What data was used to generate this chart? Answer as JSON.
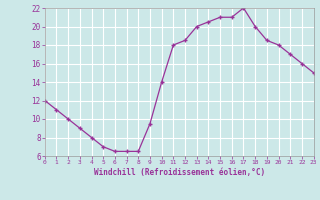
{
  "x": [
    0,
    1,
    2,
    3,
    4,
    5,
    6,
    7,
    8,
    9,
    10,
    11,
    12,
    13,
    14,
    15,
    16,
    17,
    18,
    19,
    20,
    21,
    22,
    23
  ],
  "y": [
    12,
    11,
    10,
    9,
    8,
    7,
    6.5,
    6.5,
    6.5,
    9.5,
    14,
    18,
    18.5,
    20,
    20.5,
    21,
    21,
    22,
    20,
    18.5,
    18,
    17,
    16,
    15
  ],
  "line_color": "#993399",
  "marker": "+",
  "bg_color": "#cce8e8",
  "grid_color": "#b0d8d8",
  "xlabel": "Windchill (Refroidissement éolien,°C)",
  "xlabel_color": "#993399",
  "tick_color": "#993399",
  "spine_color": "#999999",
  "ylim": [
    6,
    22
  ],
  "xlim": [
    0,
    23
  ],
  "yticks": [
    6,
    8,
    10,
    12,
    14,
    16,
    18,
    20,
    22
  ],
  "xticks": [
    0,
    1,
    2,
    3,
    4,
    5,
    6,
    7,
    8,
    9,
    10,
    11,
    12,
    13,
    14,
    15,
    16,
    17,
    18,
    19,
    20,
    21,
    22,
    23
  ],
  "xtick_labels": [
    "0",
    "1",
    "2",
    "3",
    "4",
    "5",
    "6",
    "7",
    "8",
    "9",
    "10",
    "11",
    "12",
    "13",
    "14",
    "15",
    "16",
    "17",
    "18",
    "19",
    "20",
    "21",
    "22",
    "23"
  ],
  "ytick_labels": [
    "6",
    "8",
    "10",
    "12",
    "14",
    "16",
    "18",
    "20",
    "22"
  ],
  "font_family": "monospace"
}
